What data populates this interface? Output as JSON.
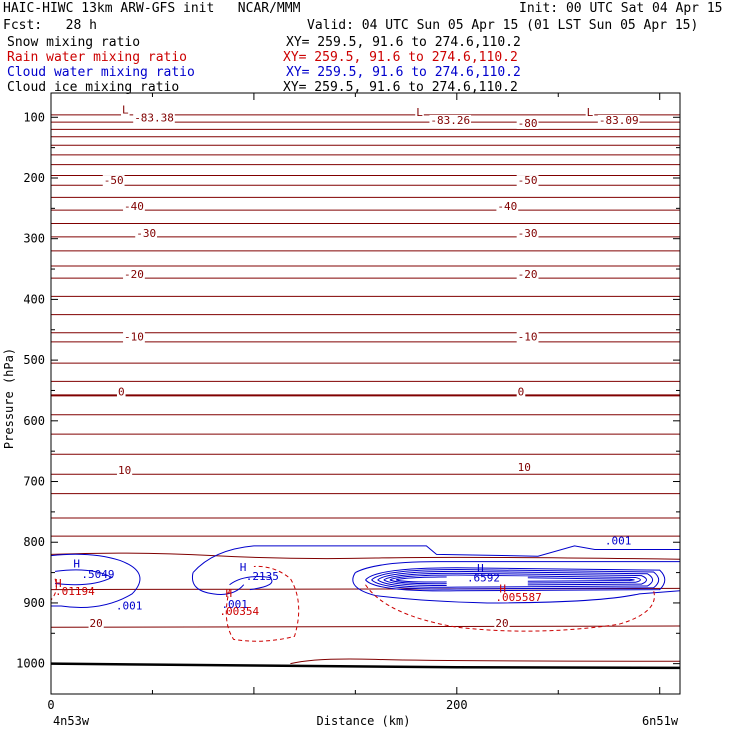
{
  "header": {
    "left_title": "HAIC-HIWC 13km ARW-GFS init   NCAR/MMM",
    "init": "Init: 00 UTC Sat 04 Apr 15",
    "fcst_label": "Fcst:   28 h",
    "valid": "Valid: 04 UTC Sun 05 Apr 15 (01 LST Sun 05 Apr 15)"
  },
  "fields": [
    {
      "name": "Snow mixing ratio",
      "xy": "XY= 259.5, 91.6 to 274.6,110.2",
      "color": "#000000"
    },
    {
      "name": "Rain water mixing ratio",
      "xy": "XY= 259.5, 91.6 to 274.6,110.2",
      "color": "#cc0000"
    },
    {
      "name": "Cloud water mixing ratio",
      "xy": "XY= 259.5, 91.6 to 274.6,110.2",
      "color": "#0000cc"
    },
    {
      "name": "Cloud ice mixing ratio",
      "xy": "XY= 259.5, 91.6 to 274.6,110.2",
      "color": "#000000"
    }
  ],
  "chart_data": {
    "type": "contour",
    "xlabel": "Distance (km)",
    "ylabel": "Pressure (hPa)",
    "xlim": [
      0,
      310
    ],
    "ylim": [
      1050,
      60
    ],
    "x_ticks": [
      0,
      200
    ],
    "y_ticks": [
      100,
      200,
      300,
      400,
      500,
      600,
      700,
      800,
      900,
      1000
    ],
    "x_endpoints": {
      "left": "4n53w",
      "right": "6n51w"
    },
    "isotherm_labels": [
      {
        "text": "L",
        "x": 35,
        "p": 94
      },
      {
        "text": "-83.38",
        "x": 41,
        "p": 107
      },
      {
        "text": "L",
        "x": 180,
        "p": 98
      },
      {
        "text": "-83.26",
        "x": 187,
        "p": 111
      },
      {
        "text": "-80",
        "x": 230,
        "p": 116
      },
      {
        "text": "L",
        "x": 264,
        "p": 98
      },
      {
        "text": "-83.09",
        "x": 270,
        "p": 111
      },
      {
        "text": "-50",
        "x": 26,
        "p": 210
      },
      {
        "text": "-50",
        "x": 230,
        "p": 210
      },
      {
        "text": "-40",
        "x": 36,
        "p": 253
      },
      {
        "text": "-40",
        "x": 220,
        "p": 253
      },
      {
        "text": "-30",
        "x": 42,
        "p": 297
      },
      {
        "text": "-30",
        "x": 230,
        "p": 297
      },
      {
        "text": "-20",
        "x": 36,
        "p": 365
      },
      {
        "text": "-20",
        "x": 230,
        "p": 365
      },
      {
        "text": "-10",
        "x": 36,
        "p": 468
      },
      {
        "text": "-10",
        "x": 230,
        "p": 468
      },
      {
        "text": "0",
        "x": 33,
        "p": 558
      },
      {
        "text": "0",
        "x": 230,
        "p": 558
      },
      {
        "text": "10",
        "x": 33,
        "p": 688
      },
      {
        "text": "10",
        "x": 230,
        "p": 683
      },
      {
        "text": "20",
        "x": 19,
        "p": 940
      },
      {
        "text": "20",
        "x": 219,
        "p": 940
      }
    ],
    "extrema_labels": [
      {
        "text": "H",
        "x": 11,
        "p": 842,
        "color": "#0000cc"
      },
      {
        "text": ".5049",
        "x": 15,
        "p": 859,
        "color": "#0000cc"
      },
      {
        "text": "H",
        "x": 2,
        "p": 874,
        "color": "#cc0000"
      },
      {
        "text": ".01194",
        "x": 2,
        "p": 887,
        "color": "#cc0000"
      },
      {
        "text": ".001",
        "x": 32,
        "p": 911,
        "color": "#0000cc"
      },
      {
        "text": "H",
        "x": 93,
        "p": 847,
        "color": "#0000cc"
      },
      {
        "text": ".2135",
        "x": 96,
        "p": 862,
        "color": "#0000cc"
      },
      {
        "text": "H",
        "x": 86,
        "p": 890,
        "color": "#cc0000"
      },
      {
        "text": ".001",
        "x": 84,
        "p": 908,
        "color": "#0000cc"
      },
      {
        "text": ".00354",
        "x": 83,
        "p": 920,
        "color": "#cc0000"
      },
      {
        "text": "H",
        "x": 210,
        "p": 849,
        "color": "#0000cc"
      },
      {
        "text": ".6592",
        "x": 205,
        "p": 865,
        "color": "#0000cc"
      },
      {
        "text": "H",
        "x": 221,
        "p": 883,
        "color": "#cc0000"
      },
      {
        "text": ".005587",
        "x": 219,
        "p": 897,
        "color": "#cc0000"
      },
      {
        "text": ".001",
        "x": 273,
        "p": 804,
        "color": "#0000cc"
      }
    ]
  }
}
